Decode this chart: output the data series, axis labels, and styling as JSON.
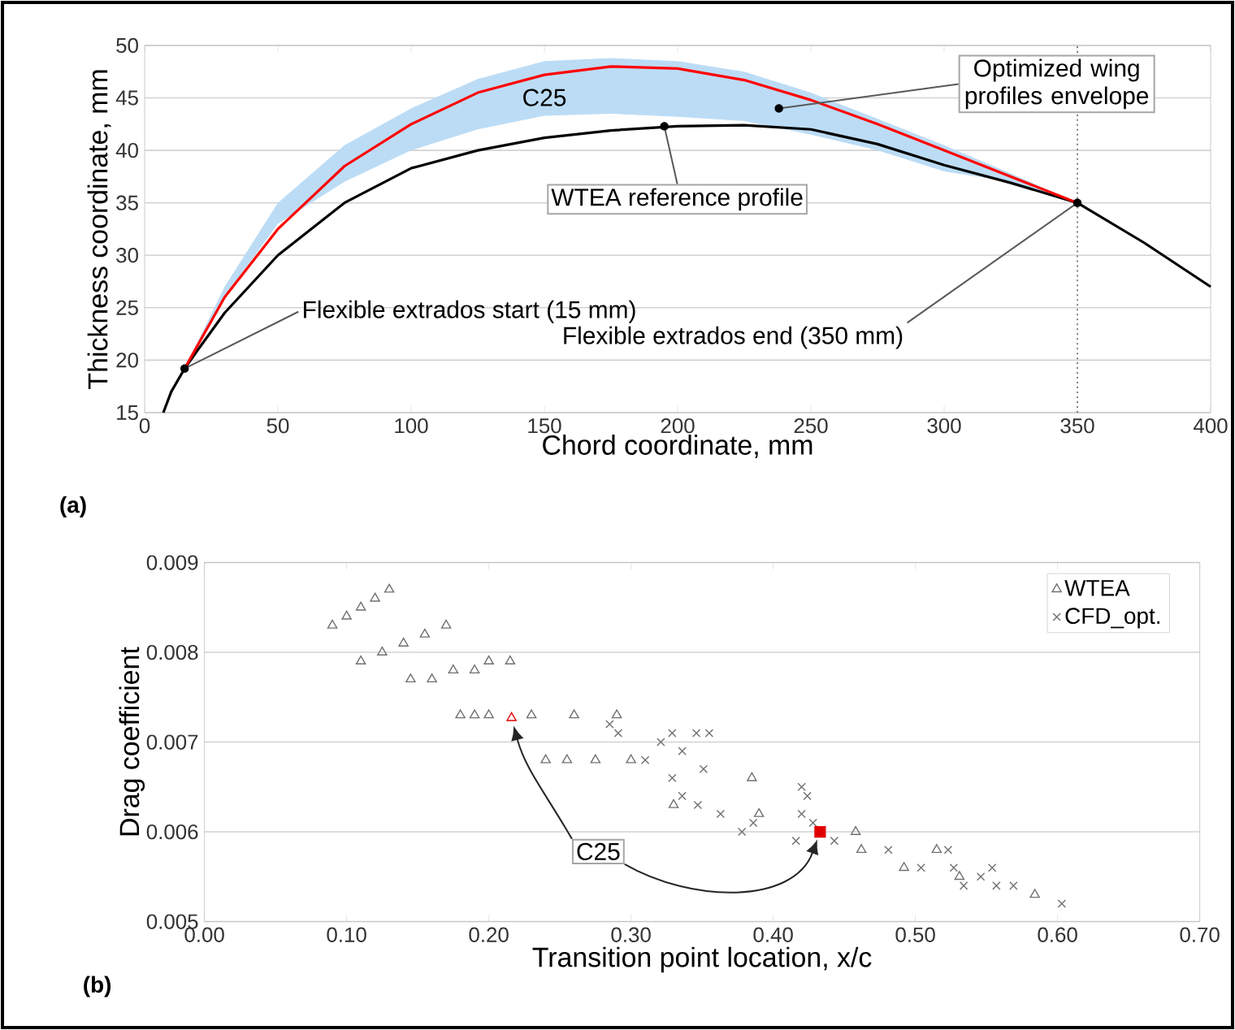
{
  "chart_data": [
    {
      "type": "line",
      "xlabel": "Chord coordinate, mm",
      "ylabel": "Thickness coordinate, mm",
      "xlim": [
        0,
        400
      ],
      "ylim": [
        15,
        50
      ],
      "xticks": [
        0,
        50,
        100,
        150,
        200,
        250,
        300,
        350,
        400
      ],
      "yticks": [
        15,
        20,
        25,
        30,
        35,
        40,
        45,
        50
      ],
      "grid": "y",
      "series": [
        {
          "color": "#000000",
          "x": [
            7,
            10,
            15,
            20,
            30,
            50,
            75,
            100,
            125,
            150,
            175,
            200,
            225,
            250,
            275,
            300,
            325,
            350,
            375,
            400
          ],
          "values": [
            15,
            17,
            19.2,
            21,
            24.5,
            30,
            35,
            38.3,
            40,
            41.2,
            41.9,
            42.3,
            42.4,
            42,
            40.6,
            38.6,
            36.9,
            35,
            31.2,
            27
          ]
        },
        {
          "color": "#ff0000",
          "x": [
            15,
            30,
            50,
            75,
            100,
            125,
            150,
            175,
            200,
            225,
            250,
            275,
            300,
            325,
            350
          ],
          "values": [
            19.2,
            26,
            32.5,
            38.5,
            42.5,
            45.5,
            47.2,
            48,
            47.8,
            46.7,
            44.8,
            42.5,
            40,
            37.5,
            35
          ],
          "lower": [
            19.2,
            26,
            33,
            37,
            40,
            42,
            43.3,
            43.5,
            43.2,
            42.8,
            41.5,
            40,
            38,
            37,
            35
          ],
          "upper": [
            19.2,
            27,
            35,
            40.5,
            44,
            46.8,
            48.5,
            48.8,
            48.5,
            47.5,
            45.5,
            43,
            40.5,
            37.8,
            35
          ]
        }
      ],
      "ref_lines": [
        {
          "axis": "x",
          "value": 350,
          "color": "#808080",
          "line_style": "dotted"
        }
      ],
      "annotations": [
        {
          "text": "C25",
          "x": 150,
          "y": 47.2
        },
        {
          "text": "Optimized wing profiles envelope",
          "x": 238,
          "y": 44
        },
        {
          "text": "WTEA reference profile",
          "x": 195,
          "y": 42.3
        },
        {
          "text": "Flexible extrados start (15 mm)",
          "x": 15,
          "y": 19.2
        },
        {
          "text": "Flexible extrados end (350 mm)",
          "x": 350,
          "y": 35
        },
        "(a)"
      ]
    },
    {
      "type": "scatter",
      "xlabel": "Transition point location, x/c",
      "ylabel": "Drag coefficient",
      "xlim": [
        0,
        0.7
      ],
      "ylim": [
        0.005,
        0.009
      ],
      "xticks": [
        {
          "value": 0,
          "label": "0.00"
        },
        {
          "value": 0.1,
          "label": "0.10"
        },
        {
          "value": 0.2,
          "label": "0.20"
        },
        {
          "value": 0.3,
          "label": "0.30"
        },
        {
          "value": 0.4,
          "label": "0.40"
        },
        {
          "value": 0.5,
          "label": "0.50"
        },
        {
          "value": 0.6,
          "label": "0.60"
        },
        {
          "value": 0.7,
          "label": "0.70"
        }
      ],
      "yticks": [
        0.005,
        0.006,
        0.007,
        0.008,
        0.009
      ],
      "grid": "y",
      "legend": "top right",
      "series": [
        {
          "name": "WTEA",
          "color": "#707070",
          "marker": "triangle",
          "x": [
            0.09,
            0.1,
            0.11,
            0.12,
            0.13,
            0.11,
            0.125,
            0.14,
            0.155,
            0.17,
            0.145,
            0.16,
            0.175,
            0.19,
            0.2,
            0.215,
            0.18,
            0.19,
            0.2,
            0.23,
            0.26,
            0.29,
            0.24,
            0.255,
            0.275,
            0.385,
            0.3,
            0.33,
            0.39,
            0.458,
            0.462,
            0.492,
            0.515,
            0.531,
            0.584
          ],
          "values": [
            0.0083,
            0.0084,
            0.0085,
            0.0086,
            0.0087,
            0.0079,
            0.008,
            0.0081,
            0.0082,
            0.0083,
            0.0077,
            0.0077,
            0.0078,
            0.0078,
            0.0079,
            0.0079,
            0.0073,
            0.0073,
            0.0073,
            0.0073,
            0.0073,
            0.0073,
            0.0068,
            0.0068,
            0.0068,
            0.0066,
            0.0068,
            0.0063,
            0.0062,
            0.006,
            0.0058,
            0.0056,
            0.0058,
            0.0055,
            0.0053
          ]
        },
        {
          "name": "CFD_opt.",
          "color": "#707070",
          "marker": "cross",
          "x": [
            0.285,
            0.291,
            0.31,
            0.321,
            0.329,
            0.336,
            0.346,
            0.355,
            0.351,
            0.329,
            0.336,
            0.347,
            0.363,
            0.378,
            0.386,
            0.42,
            0.424,
            0.42,
            0.428,
            0.416,
            0.443,
            0.481,
            0.504,
            0.523,
            0.527,
            0.534,
            0.546,
            0.554,
            0.557,
            0.569,
            0.603
          ],
          "values": [
            0.0072,
            0.0071,
            0.0068,
            0.007,
            0.0071,
            0.0069,
            0.0071,
            0.0071,
            0.0067,
            0.0066,
            0.0064,
            0.0063,
            0.0062,
            0.006,
            0.0061,
            0.0065,
            0.0064,
            0.0062,
            0.0061,
            0.0059,
            0.0059,
            0.0058,
            0.0056,
            0.0058,
            0.0056,
            0.0054,
            0.0055,
            0.0056,
            0.0054,
            0.0054,
            0.0052
          ]
        },
        {
          "color": "#e00000",
          "marker": "triangle",
          "x": [
            0.216
          ],
          "values": [
            0.00727
          ]
        },
        {
          "color": "#e00000",
          "marker": "square",
          "x": [
            0.433
          ],
          "values": [
            0.006
          ]
        }
      ],
      "annotations": [
        {
          "text": "C25",
          "x": 0.277,
          "y": 0.00578
        },
        "(b)"
      ]
    }
  ]
}
